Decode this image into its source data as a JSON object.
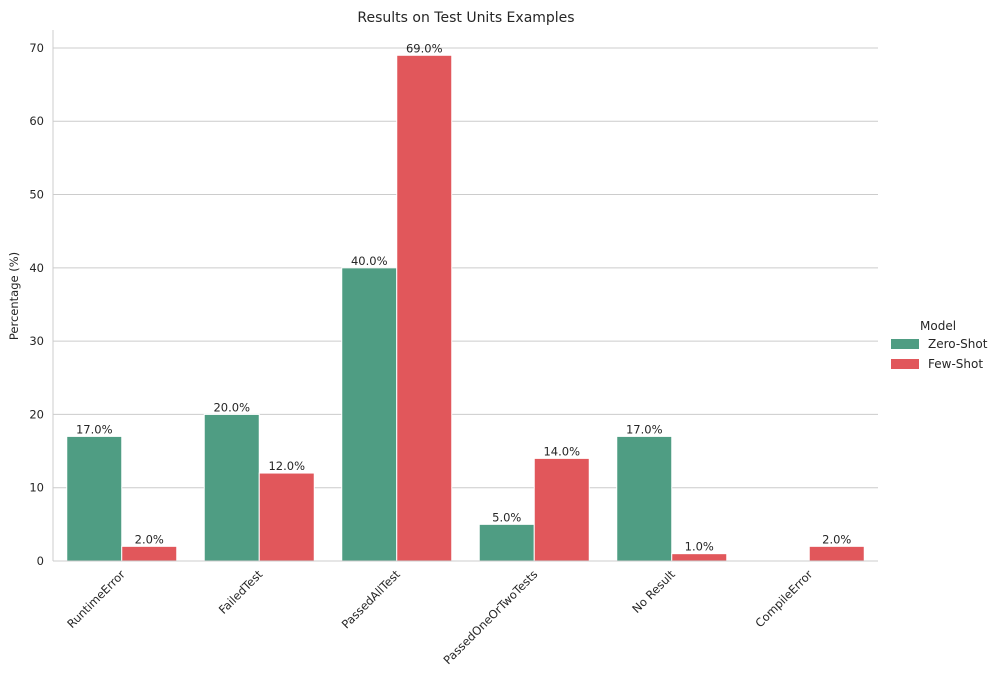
{
  "chart_data": {
    "type": "bar",
    "title": "Results on Test Units Examples",
    "xlabel": "",
    "ylabel": "Percentage (%)",
    "ylim": [
      0,
      72.45
    ],
    "yticks": [
      0,
      10,
      20,
      30,
      40,
      50,
      60,
      70
    ],
    "grid": true,
    "legend_position": "center-right",
    "legend_title": "Model",
    "categories": [
      "RuntimeError",
      "FailedTest",
      "PassedAllTest",
      "PassedOneOrTwoTests",
      "No Result",
      "CompileError"
    ],
    "series": [
      {
        "name": "Zero-Shot",
        "color": "#4f9d83",
        "values": [
          17,
          20,
          40,
          5,
          17,
          null
        ]
      },
      {
        "name": "Few-Shot",
        "color": "#e1575b",
        "values": [
          2,
          12,
          69,
          14,
          1,
          2
        ]
      }
    ],
    "value_label_suffix": "%"
  }
}
